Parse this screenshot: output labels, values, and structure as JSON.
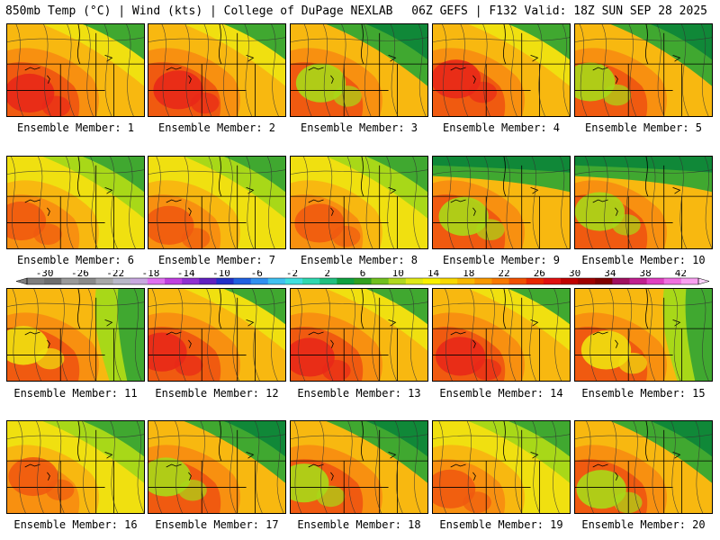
{
  "header": {
    "title_left": "850mb Temp (°C) | Wind (kts) | College of DuPage NEXLAB",
    "title_right": "06Z GEFS | F132 Valid: 18Z SUN SEP 28 2025"
  },
  "panels": [
    {
      "label": "Ensemble Member: 1",
      "pattern": "hot"
    },
    {
      "label": "Ensemble Member: 2",
      "pattern": "hot"
    },
    {
      "label": "Ensemble Member: 3",
      "pattern": "cool-ne"
    },
    {
      "label": "Ensemble Member: 4",
      "pattern": "hot"
    },
    {
      "label": "Ensemble Member: 5",
      "pattern": "cool-ne"
    },
    {
      "label": "Ensemble Member: 6",
      "pattern": "mixed"
    },
    {
      "label": "Ensemble Member: 7",
      "pattern": "mixed"
    },
    {
      "label": "Ensemble Member: 8",
      "pattern": "mixed"
    },
    {
      "label": "Ensemble Member: 9",
      "pattern": "cool-n"
    },
    {
      "label": "Ensemble Member: 10",
      "pattern": "cool-n"
    },
    {
      "label": "Ensemble Member: 11",
      "pattern": "cool-e"
    },
    {
      "label": "Ensemble Member: 12",
      "pattern": "hot"
    },
    {
      "label": "Ensemble Member: 13",
      "pattern": "hot"
    },
    {
      "label": "Ensemble Member: 14",
      "pattern": "hot"
    },
    {
      "label": "Ensemble Member: 15",
      "pattern": "cool-e"
    },
    {
      "label": "Ensemble Member: 16",
      "pattern": "mixed"
    },
    {
      "label": "Ensemble Member: 17",
      "pattern": "cool-ne"
    },
    {
      "label": "Ensemble Member: 18",
      "pattern": "cool-ne"
    },
    {
      "label": "Ensemble Member: 19",
      "pattern": "mixed"
    },
    {
      "label": "Ensemble Member: 20",
      "pattern": "cool-ne"
    }
  ],
  "colorbar": {
    "tick_labels": [
      "-30",
      "-26",
      "-22",
      "-18",
      "-14",
      "-10",
      "-6",
      "-2",
      "2",
      "6",
      "10",
      "14",
      "18",
      "22",
      "26",
      "30",
      "34",
      "38",
      "42"
    ],
    "colors": [
      "#7e7e7e",
      "#6e6e6e",
      "#9a9a9a",
      "#8a8a8a",
      "#a8a8a8",
      "#b8b8c8",
      "#c8a8e0",
      "#e070f0",
      "#c040e0",
      "#9030d0",
      "#6020c0",
      "#2030c8",
      "#2060e0",
      "#3090f0",
      "#40c0f0",
      "#40e0e0",
      "#30d8b0",
      "#20c080",
      "#10a040",
      "#30a020",
      "#70c020",
      "#b0d820",
      "#e0e818",
      "#f8f000",
      "#f8d800",
      "#f8b800",
      "#f89800",
      "#f87800",
      "#f05000",
      "#e82800",
      "#e01010",
      "#c00000",
      "#a00000",
      "#800000",
      "#a01060",
      "#c02090",
      "#e040c0",
      "#f070e0",
      "#f8a0f0"
    ]
  },
  "palette": {
    "red": "#e82818",
    "orange_red": "#f05a10",
    "orange": "#f89010",
    "gold": "#f8b810",
    "yellow": "#f0e010",
    "lime": "#a8d818",
    "green": "#40a830",
    "dark_green": "#108838",
    "teal": "#10c8b8"
  }
}
